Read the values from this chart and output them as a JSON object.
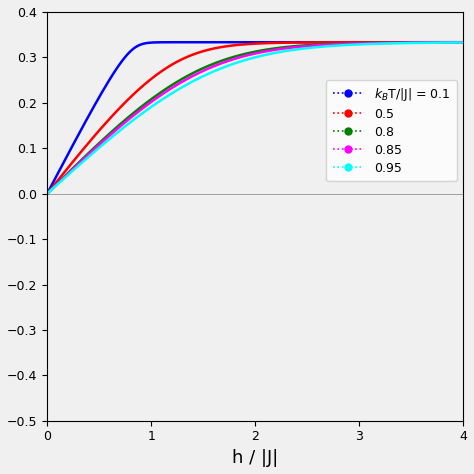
{
  "temperatures": [
    0.1,
    0.5,
    0.8,
    0.85,
    0.95
  ],
  "colors": [
    "blue",
    "red",
    "green",
    "magenta",
    "cyan"
  ],
  "legend_labels": [
    "k_BT/|J| = 0.1",
    "0.5",
    "0.8",
    "0.85",
    "0.95"
  ],
  "xlim": [
    0,
    4
  ],
  "ylim": [
    -0.5,
    0.4
  ],
  "xlabel": "h / |J|",
  "ylabel": "",
  "yticks": [
    -0.5,
    -0.4,
    -0.3,
    -0.2,
    -0.1,
    0.0,
    0.1,
    0.2,
    0.3,
    0.4
  ],
  "xticks": [
    0,
    1,
    2,
    3,
    4
  ],
  "figsize": [
    4.74,
    4.74
  ],
  "dpi": 100
}
